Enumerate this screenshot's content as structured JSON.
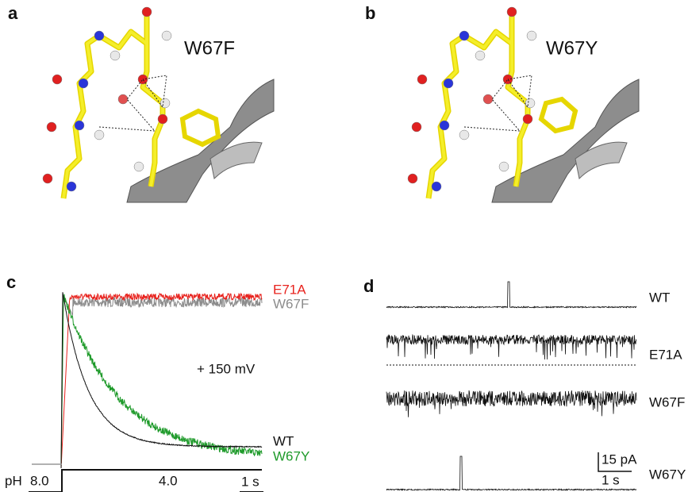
{
  "panels": [
    {
      "label": "a",
      "title": "W67F"
    },
    {
      "label": "b",
      "title": "W67Y"
    },
    {
      "label": "c",
      "traces": [
        {
          "name": "E71A",
          "color": "#e8231e"
        },
        {
          "name": "W67F",
          "color": "#8c8c8c"
        },
        {
          "name": "WT",
          "color": "#111111"
        },
        {
          "name": "W67Y",
          "color": "#1e9a2a"
        }
      ],
      "annotation": "+ 150 mV",
      "ph_label": "pH",
      "ph_before": "8.0",
      "ph_after": "4.0",
      "scale_bar": "1 s"
    },
    {
      "label": "d",
      "traces": [
        "WT",
        "E71A",
        "W67F",
        "W67Y"
      ],
      "scale_current": "15 pA",
      "scale_time": "1 s"
    }
  ]
}
